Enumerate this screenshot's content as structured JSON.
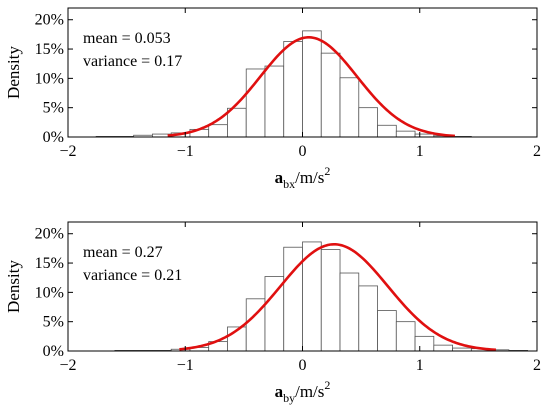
{
  "chart_data": [
    {
      "type": "bar",
      "ylabel": "Density",
      "xlabel_symbol": "a",
      "xlabel_subscript": "bx",
      "xlabel_units": "/m/s",
      "xlabel_exponent": "2",
      "xlim": [
        -2,
        2
      ],
      "ylim": [
        0,
        0.22
      ],
      "xticks": [
        "-2",
        "-1",
        "0",
        "1",
        "2"
      ],
      "yticks": [
        "0%",
        "5%",
        "10%",
        "15%",
        "20%"
      ],
      "annotations": [
        "mean = 0.053",
        "variance = 0.17"
      ],
      "bin_width": 0.16,
      "bins_x": [
        -1.84,
        -1.68,
        -1.52,
        -1.36,
        -1.2,
        -1.04,
        -0.88,
        -0.72,
        -0.56,
        -0.4,
        -0.24,
        -0.08,
        0.08,
        0.24,
        0.4,
        0.56,
        0.72,
        0.88,
        1.04,
        1.2,
        1.36,
        1.52,
        1.68,
        1.84
      ],
      "values": [
        0.0,
        0.001,
        0.001,
        0.003,
        0.005,
        0.007,
        0.013,
        0.021,
        0.049,
        0.116,
        0.121,
        0.163,
        0.181,
        0.143,
        0.101,
        0.05,
        0.02,
        0.01,
        0.005,
        0.002,
        0.001,
        0.0,
        0.0,
        0.0
      ],
      "curve": {
        "type": "normal",
        "mean": 0.053,
        "variance": 0.17,
        "peak": 0.17,
        "x_range": [
          -1.15,
          1.3
        ],
        "color": "#e01010"
      },
      "bar_fill": "#ffffff",
      "bar_stroke": "#555555",
      "grid": false
    },
    {
      "type": "bar",
      "ylabel": "Density",
      "xlabel_symbol": "a",
      "xlabel_subscript": "by",
      "xlabel_units": "/m/s",
      "xlabel_exponent": "2",
      "xlim": [
        -2,
        2
      ],
      "ylim": [
        0,
        0.22
      ],
      "xticks": [
        "-2",
        "-1",
        "0",
        "1",
        "2"
      ],
      "yticks": [
        "0%",
        "5%",
        "10%",
        "15%",
        "20%"
      ],
      "annotations": [
        "mean = 0.27",
        "variance = 0.21"
      ],
      "bin_width": 0.16,
      "bins_x": [
        -1.84,
        -1.68,
        -1.52,
        -1.36,
        -1.2,
        -1.04,
        -0.88,
        -0.72,
        -0.56,
        -0.4,
        -0.24,
        -0.08,
        0.08,
        0.24,
        0.4,
        0.56,
        0.72,
        0.88,
        1.04,
        1.2,
        1.36,
        1.52,
        1.68,
        1.84
      ],
      "values": [
        0.0,
        0.0,
        0.001,
        0.001,
        0.001,
        0.003,
        0.006,
        0.016,
        0.041,
        0.089,
        0.127,
        0.177,
        0.186,
        0.173,
        0.133,
        0.111,
        0.069,
        0.05,
        0.025,
        0.01,
        0.005,
        0.004,
        0.002,
        0.001
      ],
      "curve": {
        "type": "normal",
        "mean": 0.27,
        "variance": 0.21,
        "peak": 0.182,
        "x_range": [
          -1.05,
          1.65
        ],
        "color": "#e01010"
      },
      "bar_fill": "#ffffff",
      "bar_stroke": "#555555",
      "grid": false
    }
  ]
}
